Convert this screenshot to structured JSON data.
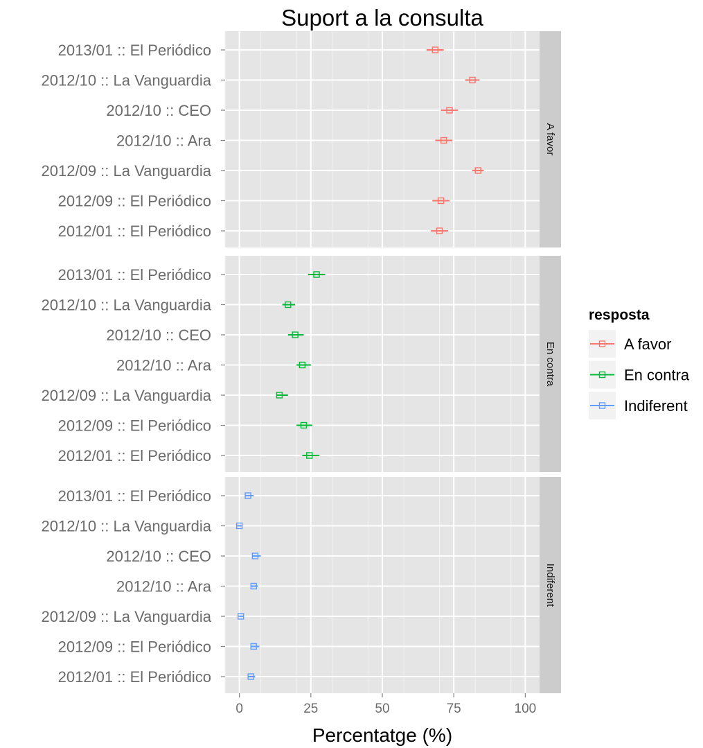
{
  "chart_data": {
    "type": "scatter",
    "title": "Suport a la consulta",
    "xlabel": "Percentatge (%)",
    "ylabel": "",
    "xlim": [
      -5,
      105
    ],
    "xticks": [
      0,
      25,
      50,
      75,
      100
    ],
    "grid": true,
    "legend": {
      "title": "resposta",
      "position": "right",
      "entries": [
        "A favor",
        "En contra",
        "Indiferent"
      ]
    },
    "categories": [
      "2013/01 :: El Periódico",
      "2012/10 :: La Vanguardia",
      "2012/10 :: CEO",
      "2012/10 :: Ara",
      "2012/09 :: La Vanguardia",
      "2012/09 :: El Periódico",
      "2012/01 :: El Periódico"
    ],
    "panels": [
      {
        "name": "A favor",
        "color": "#F8766D",
        "points": [
          {
            "value": 68.5,
            "low": 65.5,
            "high": 71.5
          },
          {
            "value": 81.5,
            "low": 79,
            "high": 84
          },
          {
            "value": 73.5,
            "low": 70.5,
            "high": 76.5
          },
          {
            "value": 71.5,
            "low": 68.5,
            "high": 74.5
          },
          {
            "value": 83.5,
            "low": 81.5,
            "high": 85.5
          },
          {
            "value": 70.5,
            "low": 67.5,
            "high": 73.5
          },
          {
            "value": 70.0,
            "low": 67,
            "high": 73
          }
        ]
      },
      {
        "name": "En contra",
        "color": "#00BA38",
        "points": [
          {
            "value": 27.0,
            "low": 24,
            "high": 30
          },
          {
            "value": 17.0,
            "low": 15,
            "high": 19.5
          },
          {
            "value": 19.5,
            "low": 17,
            "high": 22.5
          },
          {
            "value": 22.0,
            "low": 20,
            "high": 25
          },
          {
            "value": 14.0,
            "low": 13,
            "high": 17
          },
          {
            "value": 22.5,
            "low": 20,
            "high": 25.5
          },
          {
            "value": 24.5,
            "low": 22,
            "high": 28
          }
        ]
      },
      {
        "name": "Indiferent",
        "color": "#619CFF",
        "points": [
          {
            "value": 3.0,
            "low": 2,
            "high": 5
          },
          {
            "value": 0.0,
            "low": -0.7,
            "high": 0.7
          },
          {
            "value": 5.5,
            "low": 4.5,
            "high": 7.5
          },
          {
            "value": 5.0,
            "low": 4,
            "high": 6.5
          },
          {
            "value": 0.5,
            "low": 0,
            "high": 1.5
          },
          {
            "value": 5.0,
            "low": 4,
            "high": 7
          },
          {
            "value": 4.0,
            "low": 3,
            "high": 5.5
          }
        ]
      }
    ]
  }
}
